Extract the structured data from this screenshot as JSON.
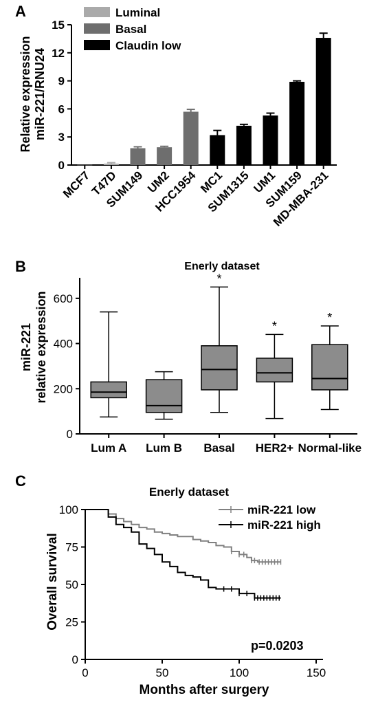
{
  "panels": {
    "A": "A",
    "B": "B",
    "C": "C"
  },
  "chart_data": [
    {
      "panel": "A",
      "type": "bar",
      "ylabel_line1": "Relative expression",
      "ylabel_line2": "miR-221/RNU24",
      "ylim": [
        0,
        15
      ],
      "yticks": [
        0,
        3,
        6,
        9,
        12,
        15
      ],
      "categories": [
        "MCF7",
        "T47D",
        "SUM149",
        "UM2",
        "HCC1954",
        "MC1",
        "SUM1315",
        "UM1",
        "SUM159",
        "MD-MBA-231"
      ],
      "values": [
        0.02,
        0.15,
        1.8,
        1.9,
        5.7,
        3.2,
        4.2,
        5.3,
        8.9,
        13.6
      ],
      "errors": [
        0.0,
        0.1,
        0.15,
        0.1,
        0.25,
        0.5,
        0.15,
        0.25,
        0.1,
        0.5
      ],
      "groups": [
        "Luminal",
        "Luminal",
        "Basal",
        "Basal",
        "Basal",
        "Claudin low",
        "Claudin low",
        "Claudin low",
        "Claudin low",
        "Claudin low"
      ],
      "legend": [
        {
          "name": "Luminal",
          "color": "#aaaaaa"
        },
        {
          "name": "Basal",
          "color": "#6e6e6e"
        },
        {
          "name": "Claudin low",
          "color": "#000000"
        }
      ],
      "legend_position": "top-left"
    },
    {
      "panel": "B",
      "type": "box",
      "title": "Enerly dataset",
      "ylabel_line1": "miR-221",
      "ylabel_line2": "relative expression",
      "ylim": [
        0,
        700
      ],
      "yticks": [
        0,
        200,
        400,
        600
      ],
      "box_color": "#8c8c8c",
      "categories": [
        "Lum A",
        "Lum B",
        "Basal",
        "HER2+",
        "Normal-like"
      ],
      "boxes": [
        {
          "min": 75,
          "q1": 160,
          "median": 185,
          "q3": 230,
          "max": 540,
          "star": ""
        },
        {
          "min": 65,
          "q1": 95,
          "median": 125,
          "q3": 240,
          "max": 275,
          "star": ""
        },
        {
          "min": 95,
          "q1": 195,
          "median": 285,
          "q3": 390,
          "max": 650,
          "star": "*"
        },
        {
          "min": 68,
          "q1": 230,
          "median": 270,
          "q3": 335,
          "max": 440,
          "star": "*"
        },
        {
          "min": 108,
          "q1": 195,
          "median": 245,
          "q3": 395,
          "max": 478,
          "star": "*"
        }
      ]
    },
    {
      "panel": "C",
      "type": "line",
      "title": "Enerly dataset",
      "xlabel": "Months after surgery",
      "ylabel": "Overall survival",
      "xlim": [
        0,
        150
      ],
      "ylim": [
        0,
        100
      ],
      "xticks": [
        0,
        50,
        100,
        150
      ],
      "yticks": [
        0,
        25,
        50,
        75,
        100
      ],
      "annotation": "p=0.0203",
      "legend_position": "top-right",
      "series": [
        {
          "name": "miR-221 low",
          "color": "#808080",
          "x": [
            0,
            10,
            15,
            20,
            25,
            30,
            35,
            40,
            45,
            50,
            55,
            60,
            65,
            70,
            75,
            80,
            85,
            90,
            95,
            100,
            105,
            108,
            112,
            120,
            127
          ],
          "y": [
            100,
            100,
            97,
            94,
            92,
            90,
            88,
            87,
            85,
            84,
            83,
            82,
            82,
            80,
            79,
            78,
            76,
            75,
            72,
            70,
            68,
            66,
            65,
            65,
            65
          ],
          "censor_x": [
            95,
            100,
            103,
            108,
            110,
            113,
            115,
            117,
            119,
            121,
            123,
            125,
            127
          ]
        },
        {
          "name": "miR-221 high",
          "color": "#000000",
          "x": [
            0,
            10,
            15,
            20,
            25,
            30,
            35,
            40,
            45,
            50,
            55,
            60,
            65,
            70,
            75,
            80,
            85,
            90,
            95,
            100,
            105,
            110,
            115,
            120,
            127
          ],
          "y": [
            100,
            100,
            95,
            90,
            88,
            85,
            77,
            74,
            70,
            65,
            62,
            58,
            56,
            55,
            53,
            48,
            47,
            47,
            47,
            44,
            44,
            41,
            41,
            41,
            41
          ],
          "censor_x": [
            90,
            95,
            100,
            105,
            110,
            112,
            114,
            116,
            118,
            120,
            122,
            124,
            126
          ]
        }
      ]
    }
  ]
}
